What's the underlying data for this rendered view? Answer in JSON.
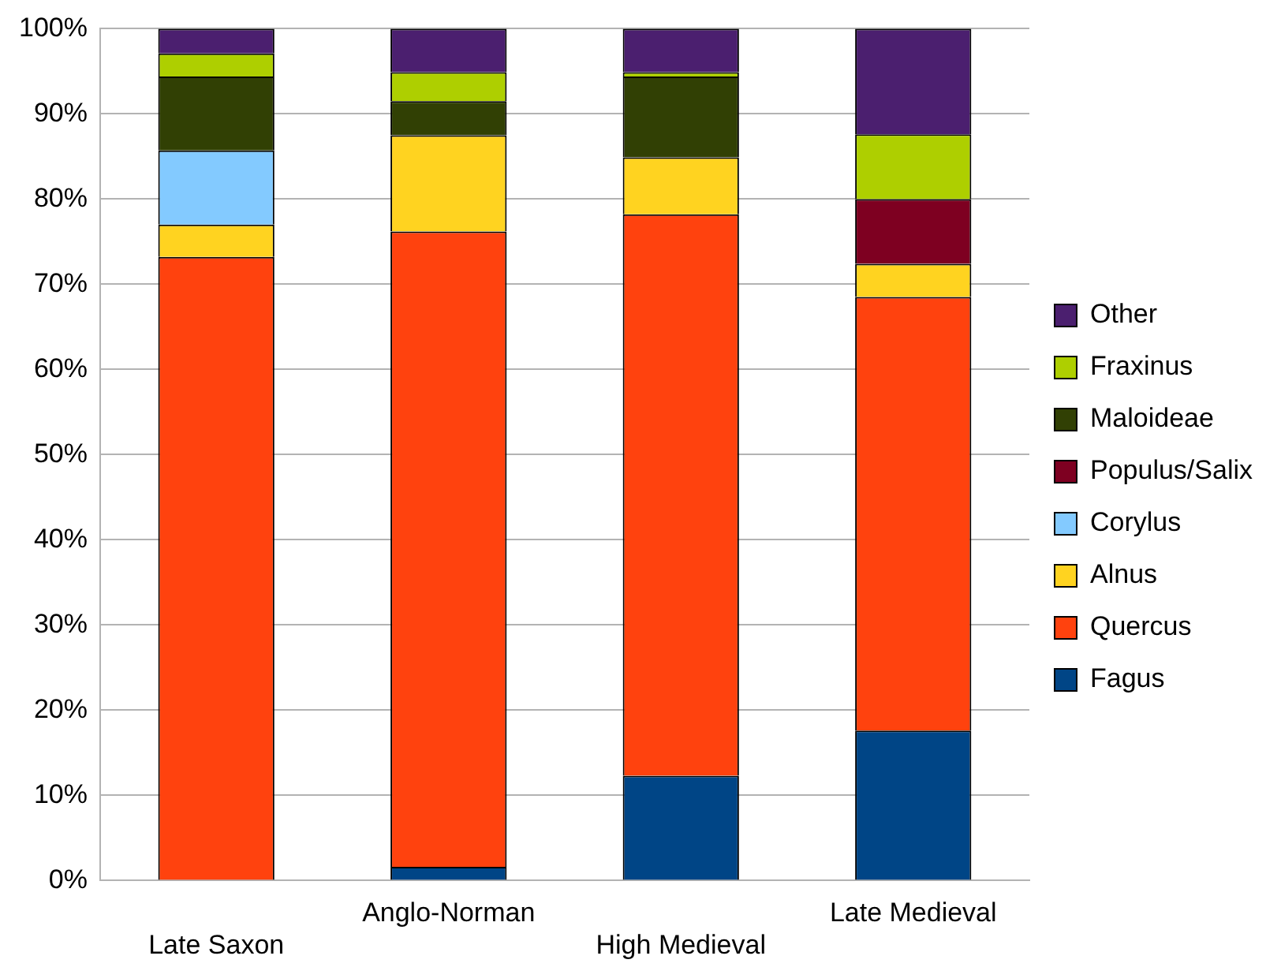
{
  "chart_data": {
    "type": "bar",
    "stacked": true,
    "categories": [
      "Late Saxon",
      "Anglo-Norman",
      "High Medieval",
      "Late Medieval"
    ],
    "series": [
      {
        "name": "Fagus",
        "color": "#004586",
        "values": [
          0,
          1.6,
          12.3,
          17.6
        ]
      },
      {
        "name": "Quercus",
        "color": "#ff420e",
        "values": [
          73.2,
          74.6,
          65.9,
          50.9
        ]
      },
      {
        "name": "Alnus",
        "color": "#ffd320",
        "values": [
          3.8,
          11.3,
          6.7,
          3.9
        ]
      },
      {
        "name": "Corylus",
        "color": "#83caff",
        "values": [
          8.7,
          0,
          0,
          0
        ]
      },
      {
        "name": "Populus/Salix",
        "color": "#7e0021",
        "values": [
          0,
          0,
          0,
          7.6
        ]
      },
      {
        "name": "Maloideae",
        "color": "#314004",
        "values": [
          8.7,
          4.0,
          9.5,
          0
        ]
      },
      {
        "name": "Fraxinus",
        "color": "#aecf00",
        "values": [
          2.7,
          3.4,
          0.5,
          7.6
        ]
      },
      {
        "name": "Other",
        "color": "#4b1f6f",
        "values": [
          2.9,
          5.1,
          5.1,
          12.4
        ]
      }
    ],
    "ylim": [
      0,
      100
    ],
    "yticks": [
      {
        "value": 0,
        "label": "0%"
      },
      {
        "value": 10,
        "label": "10%"
      },
      {
        "value": 20,
        "label": "20%"
      },
      {
        "value": 30,
        "label": "30%"
      },
      {
        "value": 40,
        "label": "40%"
      },
      {
        "value": 50,
        "label": "50%"
      },
      {
        "value": 60,
        "label": "60%"
      },
      {
        "value": 70,
        "label": "70%"
      },
      {
        "value": 80,
        "label": "80%"
      },
      {
        "value": 90,
        "label": "90%"
      },
      {
        "value": 100,
        "label": "100%"
      }
    ],
    "grid": "y",
    "legend": "right"
  }
}
